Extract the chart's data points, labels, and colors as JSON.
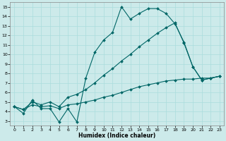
{
  "xlabel": "Humidex (Indice chaleur)",
  "bg_color": "#cceaea",
  "grid_color": "#aadddd",
  "line_color": "#006666",
  "xlim": [
    -0.5,
    23.5
  ],
  "ylim": [
    2.5,
    15.5
  ],
  "xticks": [
    0,
    1,
    2,
    3,
    4,
    5,
    6,
    7,
    8,
    9,
    10,
    11,
    12,
    13,
    14,
    15,
    16,
    17,
    18,
    19,
    20,
    21,
    22,
    23
  ],
  "yticks": [
    3,
    4,
    5,
    6,
    7,
    8,
    9,
    10,
    11,
    12,
    13,
    14,
    15
  ],
  "line1_x": [
    0,
    1,
    2,
    3,
    4,
    5,
    6,
    7,
    8,
    9,
    10,
    11,
    12,
    13,
    14,
    15,
    16,
    17,
    18,
    19,
    20,
    21,
    22,
    23
  ],
  "line1_y": [
    4.5,
    3.8,
    5.2,
    4.3,
    4.3,
    2.9,
    4.3,
    2.9,
    7.5,
    10.2,
    11.5,
    12.3,
    15.0,
    13.7,
    14.3,
    14.8,
    14.8,
    14.3,
    13.2,
    11.3,
    8.7,
    7.3,
    7.5,
    7.7
  ],
  "line2_x": [
    0,
    1,
    2,
    3,
    4,
    5,
    6,
    7,
    8,
    9,
    10,
    11,
    12,
    13,
    14,
    15,
    16,
    17,
    18,
    19,
    20,
    21,
    22,
    23
  ],
  "line2_y": [
    4.5,
    4.2,
    5.0,
    4.7,
    5.0,
    4.5,
    5.5,
    5.8,
    6.3,
    7.0,
    7.8,
    8.5,
    9.3,
    10.0,
    10.8,
    11.5,
    12.2,
    12.8,
    13.3,
    11.2,
    8.7,
    7.3,
    7.5,
    7.7
  ],
  "line3_x": [
    0,
    1,
    2,
    3,
    4,
    5,
    6,
    7,
    8,
    9,
    10,
    11,
    12,
    13,
    14,
    15,
    16,
    17,
    18,
    19,
    20,
    21,
    22,
    23
  ],
  "line3_y": [
    4.5,
    4.2,
    4.7,
    4.5,
    4.6,
    4.3,
    4.7,
    4.8,
    5.0,
    5.2,
    5.5,
    5.7,
    6.0,
    6.3,
    6.6,
    6.8,
    7.0,
    7.2,
    7.3,
    7.4,
    7.4,
    7.5,
    7.5,
    7.7
  ]
}
